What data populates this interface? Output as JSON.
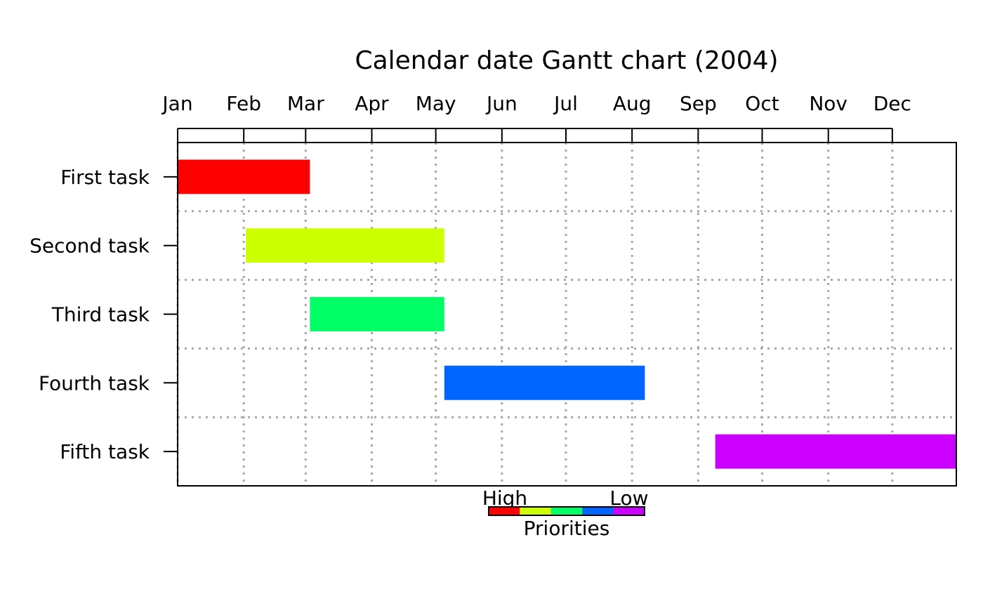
{
  "chart_data": {
    "type": "gantt",
    "title": "Calendar date Gantt chart (2004)",
    "x_axis": {
      "position": "top",
      "range": [
        "2004-01-01",
        "2004-12-31"
      ],
      "tick_dates": [
        "2004-01-01",
        "2004-02-01",
        "2004-03-01",
        "2004-04-01",
        "2004-05-01",
        "2004-06-01",
        "2004-07-01",
        "2004-08-01",
        "2004-09-01",
        "2004-10-01",
        "2004-11-01",
        "2004-12-01"
      ],
      "tick_labels": [
        "Jan",
        "Feb",
        "Mar",
        "Apr",
        "May",
        "Jun",
        "Jul",
        "Aug",
        "Sep",
        "Oct",
        "Nov",
        "Dec"
      ]
    },
    "grid": true,
    "tasks": [
      {
        "label": "First task",
        "start": "2004-01-01",
        "end": "2004-03-03",
        "priority": 1,
        "color": "#FF0000"
      },
      {
        "label": "Second task",
        "start": "2004-02-02",
        "end": "2004-05-05",
        "priority": 2,
        "color": "#CCFF00"
      },
      {
        "label": "Third task",
        "start": "2004-03-03",
        "end": "2004-05-05",
        "priority": 3,
        "color": "#00FF66"
      },
      {
        "label": "Fourth task",
        "start": "2004-05-05",
        "end": "2004-08-07",
        "priority": 4,
        "color": "#0066FF"
      },
      {
        "label": "Fifth task",
        "start": "2004-09-09",
        "end": "2004-12-31",
        "priority": 5,
        "color": "#CC00FF"
      }
    ],
    "priority_legend": {
      "high_label": "High",
      "low_label": "Low",
      "caption": "Priorities",
      "colors": [
        "#FF0000",
        "#CCFF00",
        "#00FF66",
        "#0066FF",
        "#CC00FF"
      ]
    }
  }
}
